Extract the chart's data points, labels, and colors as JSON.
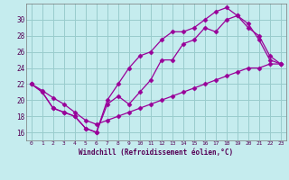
{
  "xlabel": "Windchill (Refroidissement éolien,°C)",
  "bg_color": "#c5ecee",
  "grid_color": "#99cccc",
  "line_color": "#990099",
  "xlim": [
    -0.5,
    23.5
  ],
  "ylim": [
    15.0,
    32.0
  ],
  "yticks": [
    16,
    18,
    20,
    22,
    24,
    26,
    28,
    30
  ],
  "xticks": [
    0,
    1,
    2,
    3,
    4,
    5,
    6,
    7,
    8,
    9,
    10,
    11,
    12,
    13,
    14,
    15,
    16,
    17,
    18,
    19,
    20,
    21,
    22,
    23
  ],
  "line1_x": [
    0,
    1,
    2,
    3,
    4,
    5,
    6,
    7,
    8,
    9,
    10,
    11,
    12,
    13,
    14,
    15,
    16,
    17,
    18,
    19,
    20,
    21,
    22,
    23
  ],
  "line1_y": [
    22,
    21,
    19,
    18.5,
    18,
    16.5,
    16,
    20,
    22,
    24,
    25.5,
    26,
    27.5,
    28.5,
    28.5,
    29,
    30,
    31,
    31.5,
    30.5,
    29,
    28,
    25.5,
    24.5
  ],
  "line2_x": [
    0,
    1,
    2,
    3,
    4,
    5,
    6,
    7,
    8,
    9,
    10,
    11,
    12,
    13,
    14,
    15,
    16,
    17,
    18,
    19,
    20,
    21,
    22,
    23
  ],
  "line2_y": [
    22,
    21,
    19,
    18.5,
    18,
    16.5,
    16,
    19.5,
    20.5,
    19.5,
    21,
    22.5,
    25,
    25,
    27,
    27.5,
    29,
    28.5,
    30,
    30.5,
    29.5,
    27.5,
    25,
    24.5
  ],
  "line3_x": [
    0,
    1,
    2,
    3,
    4,
    5,
    6,
    7,
    8,
    9,
    10,
    11,
    12,
    13,
    14,
    15,
    16,
    17,
    18,
    19,
    20,
    21,
    22,
    23
  ],
  "line3_y": [
    22,
    21.2,
    20.3,
    19.5,
    18.5,
    17.5,
    17,
    17.5,
    18,
    18.5,
    19,
    19.5,
    20,
    20.5,
    21,
    21.5,
    22,
    22.5,
    23,
    23.5,
    24,
    24,
    24.5,
    24.5
  ]
}
